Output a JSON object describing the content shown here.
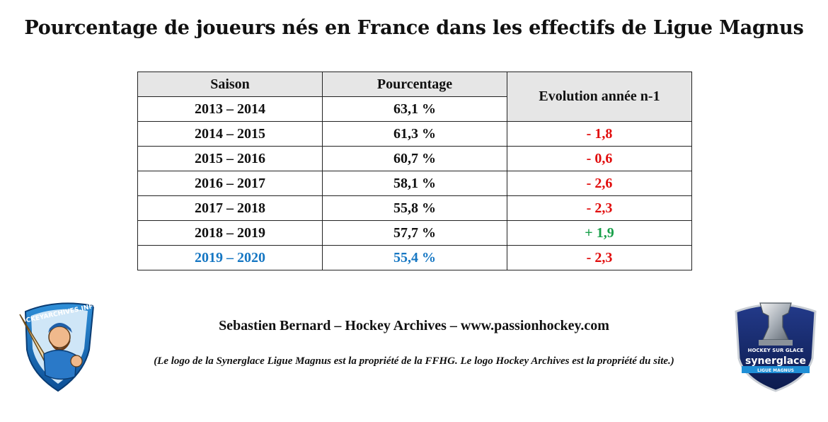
{
  "title": "Pourcentage de joueurs nés en France dans les effectifs de Ligue Magnus",
  "table": {
    "headers": [
      "Saison",
      "Pourcentage",
      "Evolution année n-1"
    ],
    "rows": [
      {
        "saison": "2013 – 2014",
        "pourcentage": "63,1 %",
        "evolution": ""
      },
      {
        "saison": "2014 – 2015",
        "pourcentage": "61,3 %",
        "evolution": "- 1,8"
      },
      {
        "saison": "2015 – 2016",
        "pourcentage": "60,7 %",
        "evolution": "- 0,6"
      },
      {
        "saison": "2016 – 2017",
        "pourcentage": "58,1 %",
        "evolution": "- 2,6"
      },
      {
        "saison": "2017 – 2018",
        "pourcentage": "55,8 %",
        "evolution": "- 2,3"
      },
      {
        "saison": "2018 – 2019",
        "pourcentage": "57,7 %",
        "evolution": "+ 1,9"
      },
      {
        "saison": "2019 – 2020",
        "pourcentage": "55,4 %",
        "evolution": "- 2,3"
      }
    ]
  },
  "credit": "Sebastien Bernard – Hockey Archives – www.passionhockey.com",
  "note": "(Le logo de la Synerglace Ligue Magnus est la propriété de la FFHG. Le logo Hockey Archives est la propriété du site.)",
  "logos": {
    "left_text": "HOCKEYARCHIVES.INFO",
    "right_top": "HOCKEY SUR GLACE",
    "right_brand": "synerglace",
    "right_bottom": "LIGUE MAGNUS"
  },
  "colors": {
    "negative": "#e10d0d",
    "positive": "#19a04a",
    "highlight": "#1677c3",
    "header_bg": "#e6e6e6"
  }
}
